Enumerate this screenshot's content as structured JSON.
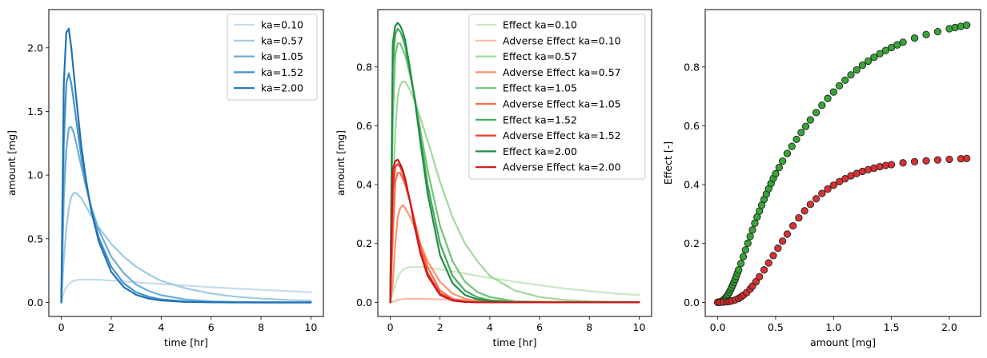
{
  "chart_data": [
    {
      "type": "line",
      "xlabel": "time [hr]",
      "ylabel": "amount [mg]",
      "xlim": [
        -0.5,
        10.5
      ],
      "ylim": [
        -0.11,
        2.3
      ],
      "xticks": [
        0,
        2,
        4,
        6,
        8,
        10
      ],
      "xtick_labels": [
        "0",
        "2",
        "4",
        "6",
        "8",
        "10"
      ],
      "yticks": [
        0.0,
        0.5,
        1.0,
        1.5,
        2.0
      ],
      "ytick_labels": [
        "0.0",
        "0.5",
        "1.0",
        "1.5",
        "2.0"
      ],
      "legend": "top-right",
      "grid": false,
      "x": [
        0,
        0.1,
        0.2,
        0.3,
        0.4,
        0.5,
        0.6,
        0.8,
        1,
        1.2,
        1.5,
        2,
        2.5,
        3,
        3.5,
        4,
        5,
        6,
        7,
        8,
        9,
        10
      ],
      "series": [
        {
          "name": "ka=0.10",
          "color": "#c6dbef",
          "values": [
            0,
            0.08,
            0.12,
            0.145,
            0.16,
            0.17,
            0.175,
            0.18,
            0.18,
            0.18,
            0.178,
            0.172,
            0.165,
            0.158,
            0.151,
            0.145,
            0.132,
            0.12,
            0.109,
            0.099,
            0.09,
            0.08
          ]
        },
        {
          "name": "ka=0.57",
          "color": "#9ecae1",
          "values": [
            0,
            0.34,
            0.58,
            0.74,
            0.83,
            0.86,
            0.86,
            0.82,
            0.75,
            0.68,
            0.59,
            0.46,
            0.36,
            0.28,
            0.22,
            0.17,
            0.11,
            0.07,
            0.045,
            0.03,
            0.02,
            0.013
          ]
        },
        {
          "name": "ka=1.05",
          "color": "#6baed6",
          "values": [
            0,
            0.82,
            1.2,
            1.37,
            1.38,
            1.33,
            1.25,
            1.07,
            0.9,
            0.75,
            0.57,
            0.36,
            0.23,
            0.14,
            0.09,
            0.057,
            0.023,
            0.009,
            0.004,
            0.002,
            0.001,
            0.0
          ]
        },
        {
          "name": "ka=1.52",
          "color": "#4292c6",
          "values": [
            0,
            1.25,
            1.72,
            1.8,
            1.72,
            1.58,
            1.43,
            1.15,
            0.92,
            0.73,
            0.51,
            0.28,
            0.15,
            0.08,
            0.045,
            0.024,
            0.007,
            0.002,
            0.001,
            0.0,
            0.0,
            0.0
          ]
        },
        {
          "name": "ka=2.00",
          "color": "#2171b5",
          "values": [
            0,
            1.72,
            2.12,
            2.15,
            2.0,
            1.8,
            1.6,
            1.23,
            0.95,
            0.72,
            0.48,
            0.24,
            0.12,
            0.06,
            0.03,
            0.015,
            0.004,
            0.001,
            0.0,
            0.0,
            0.0,
            0.0
          ]
        }
      ]
    },
    {
      "type": "line",
      "xlabel": "time [hr]",
      "ylabel": "amount [mg]",
      "xlim": [
        -0.5,
        10.5
      ],
      "ylim": [
        -0.048,
        0.995
      ],
      "xticks": [
        0,
        2,
        4,
        6,
        8,
        10
      ],
      "xtick_labels": [
        "0",
        "2",
        "4",
        "6",
        "8",
        "10"
      ],
      "yticks": [
        0.0,
        0.2,
        0.4,
        0.6,
        0.8
      ],
      "ytick_labels": [
        "0.0",
        "0.2",
        "0.4",
        "0.6",
        "0.8"
      ],
      "legend": "top-right",
      "grid": false,
      "x": [
        0,
        0.1,
        0.2,
        0.3,
        0.4,
        0.5,
        0.6,
        0.8,
        1,
        1.2,
        1.5,
        2,
        2.5,
        3,
        3.5,
        4,
        5,
        6,
        7,
        8,
        9,
        10
      ],
      "series": [
        {
          "name": "Effect ka=0.10",
          "color": "#c7e9c0",
          "values": [
            0,
            0.03,
            0.06,
            0.085,
            0.1,
            0.11,
            0.115,
            0.12,
            0.12,
            0.12,
            0.118,
            0.112,
            0.105,
            0.098,
            0.09,
            0.083,
            0.07,
            0.058,
            0.047,
            0.038,
            0.03,
            0.025
          ]
        },
        {
          "name": "Adverse Effect ka=0.10",
          "color": "#fcbba1",
          "values": [
            0,
            0.002,
            0.005,
            0.008,
            0.01,
            0.011,
            0.012,
            0.012,
            0.012,
            0.012,
            0.011,
            0.01,
            0.009,
            0.008,
            0.007,
            0.006,
            0.004,
            0.003,
            0.002,
            0.001,
            0.001,
            0.0
          ]
        },
        {
          "name": "Effect ka=0.57",
          "color": "#a1d99b",
          "values": [
            0,
            0.33,
            0.58,
            0.7,
            0.74,
            0.75,
            0.75,
            0.72,
            0.68,
            0.63,
            0.55,
            0.41,
            0.29,
            0.2,
            0.14,
            0.09,
            0.04,
            0.018,
            0.008,
            0.004,
            0.002,
            0.001
          ]
        },
        {
          "name": "Adverse Effect ka=0.57",
          "color": "#fc9272",
          "values": [
            0,
            0.06,
            0.2,
            0.29,
            0.32,
            0.33,
            0.32,
            0.29,
            0.25,
            0.2,
            0.14,
            0.07,
            0.03,
            0.012,
            0.005,
            0.002,
            0.0,
            0.0,
            0.0,
            0.0,
            0.0,
            0.0
          ]
        },
        {
          "name": "Effect ka=1.05",
          "color": "#74c476",
          "values": [
            0,
            0.62,
            0.84,
            0.88,
            0.88,
            0.86,
            0.84,
            0.77,
            0.69,
            0.59,
            0.45,
            0.26,
            0.14,
            0.07,
            0.035,
            0.018,
            0.004,
            0.001,
            0.0,
            0.0,
            0.0,
            0.0
          ]
        },
        {
          "name": "Adverse Effect ka=1.05",
          "color": "#fb6a4a",
          "values": [
            0,
            0.22,
            0.41,
            0.44,
            0.44,
            0.42,
            0.4,
            0.34,
            0.27,
            0.2,
            0.12,
            0.04,
            0.012,
            0.004,
            0.001,
            0.0,
            0.0,
            0.0,
            0.0,
            0.0,
            0.0,
            0.0
          ]
        },
        {
          "name": "Effect ka=1.52",
          "color": "#41ab5d",
          "values": [
            0,
            0.8,
            0.91,
            0.93,
            0.92,
            0.9,
            0.87,
            0.78,
            0.68,
            0.57,
            0.4,
            0.2,
            0.09,
            0.04,
            0.017,
            0.007,
            0.001,
            0.0,
            0.0,
            0.0,
            0.0,
            0.0
          ]
        },
        {
          "name": "Adverse Effect ka=1.52",
          "color": "#ef3b2c",
          "values": [
            0,
            0.38,
            0.46,
            0.47,
            0.46,
            0.44,
            0.41,
            0.34,
            0.26,
            0.18,
            0.1,
            0.03,
            0.008,
            0.002,
            0.0,
            0.0,
            0.0,
            0.0,
            0.0,
            0.0,
            0.0,
            0.0
          ]
        },
        {
          "name": "Effect ka=2.00",
          "color": "#238b45",
          "values": [
            0,
            0.88,
            0.94,
            0.95,
            0.94,
            0.92,
            0.89,
            0.79,
            0.68,
            0.55,
            0.37,
            0.16,
            0.065,
            0.025,
            0.01,
            0.004,
            0.0,
            0.0,
            0.0,
            0.0,
            0.0,
            0.0
          ]
        },
        {
          "name": "Adverse Effect ka=2.00",
          "color": "#cb181d",
          "values": [
            0,
            0.45,
            0.48,
            0.485,
            0.47,
            0.45,
            0.42,
            0.34,
            0.25,
            0.17,
            0.09,
            0.025,
            0.006,
            0.001,
            0.0,
            0.0,
            0.0,
            0.0,
            0.0,
            0.0,
            0.0,
            0.0
          ]
        }
      ]
    },
    {
      "type": "scatter",
      "xlabel": "amount [mg]",
      "ylabel": "Effect [-]",
      "xlim": [
        -0.108,
        2.27
      ],
      "ylim": [
        -0.048,
        0.995
      ],
      "xticks": [
        0.0,
        0.5,
        1.0,
        1.5,
        2.0
      ],
      "xtick_labels": [
        "0.0",
        "0.5",
        "1.0",
        "1.5",
        "2.0"
      ],
      "yticks": [
        0.0,
        0.2,
        0.4,
        0.6,
        0.8
      ],
      "ytick_labels": [
        "0.0",
        "0.2",
        "0.4",
        "0.6",
        "0.8"
      ],
      "grid": false,
      "series": [
        {
          "color": "#2ca02c",
          "points": [
            [
              0.0,
              0.0
            ],
            [
              0.01,
              0.0
            ],
            [
              0.02,
              0.002
            ],
            [
              0.03,
              0.003
            ],
            [
              0.04,
              0.005
            ],
            [
              0.05,
              0.008
            ],
            [
              0.06,
              0.012
            ],
            [
              0.07,
              0.016
            ],
            [
              0.08,
              0.021
            ],
            [
              0.09,
              0.027
            ],
            [
              0.1,
              0.034
            ],
            [
              0.11,
              0.042
            ],
            [
              0.12,
              0.05
            ],
            [
              0.13,
              0.059
            ],
            [
              0.14,
              0.068
            ],
            [
              0.15,
              0.078
            ],
            [
              0.16,
              0.088
            ],
            [
              0.17,
              0.099
            ],
            [
              0.18,
              0.11
            ],
            [
              0.2,
              0.132
            ],
            [
              0.22,
              0.155
            ],
            [
              0.24,
              0.178
            ],
            [
              0.26,
              0.201
            ],
            [
              0.28,
              0.224
            ],
            [
              0.3,
              0.246
            ],
            [
              0.32,
              0.269
            ],
            [
              0.34,
              0.29
            ],
            [
              0.36,
              0.31
            ],
            [
              0.38,
              0.33
            ],
            [
              0.4,
              0.35
            ],
            [
              0.42,
              0.368
            ],
            [
              0.44,
              0.386
            ],
            [
              0.46,
              0.404
            ],
            [
              0.48,
              0.421
            ],
            [
              0.5,
              0.437
            ],
            [
              0.53,
              0.458
            ],
            [
              0.56,
              0.48
            ],
            [
              0.6,
              0.506
            ],
            [
              0.64,
              0.53
            ],
            [
              0.68,
              0.554
            ],
            [
              0.72,
              0.577
            ],
            [
              0.76,
              0.598
            ],
            [
              0.8,
              0.62
            ],
            [
              0.85,
              0.645
            ],
            [
              0.9,
              0.67
            ],
            [
              0.95,
              0.693
            ],
            [
              1.0,
              0.715
            ],
            [
              1.05,
              0.736
            ],
            [
              1.1,
              0.755
            ],
            [
              1.15,
              0.773
            ],
            [
              1.2,
              0.79
            ],
            [
              1.25,
              0.806
            ],
            [
              1.3,
              0.82
            ],
            [
              1.35,
              0.833
            ],
            [
              1.4,
              0.845
            ],
            [
              1.45,
              0.856
            ],
            [
              1.5,
              0.866
            ],
            [
              1.55,
              0.875
            ],
            [
              1.6,
              0.884
            ],
            [
              1.7,
              0.898
            ],
            [
              1.8,
              0.91
            ],
            [
              1.9,
              0.92
            ],
            [
              2.0,
              0.93
            ],
            [
              2.05,
              0.934
            ],
            [
              2.1,
              0.938
            ],
            [
              2.15,
              0.942
            ]
          ]
        },
        {
          "color": "#d62728",
          "points": [
            [
              0.0,
              0.0
            ],
            [
              0.02,
              0.0
            ],
            [
              0.05,
              0.001
            ],
            [
              0.08,
              0.002
            ],
            [
              0.1,
              0.003
            ],
            [
              0.12,
              0.005
            ],
            [
              0.15,
              0.008
            ],
            [
              0.18,
              0.013
            ],
            [
              0.2,
              0.018
            ],
            [
              0.22,
              0.024
            ],
            [
              0.25,
              0.033
            ],
            [
              0.28,
              0.045
            ],
            [
              0.3,
              0.055
            ],
            [
              0.33,
              0.07
            ],
            [
              0.36,
              0.087
            ],
            [
              0.4,
              0.11
            ],
            [
              0.44,
              0.134
            ],
            [
              0.48,
              0.159
            ],
            [
              0.52,
              0.184
            ],
            [
              0.56,
              0.208
            ],
            [
              0.6,
              0.232
            ],
            [
              0.65,
              0.26
            ],
            [
              0.7,
              0.287
            ],
            [
              0.75,
              0.311
            ],
            [
              0.8,
              0.333
            ],
            [
              0.85,
              0.352
            ],
            [
              0.9,
              0.37
            ],
            [
              0.95,
              0.385
            ],
            [
              1.0,
              0.398
            ],
            [
              1.05,
              0.41
            ],
            [
              1.1,
              0.42
            ],
            [
              1.15,
              0.43
            ],
            [
              1.2,
              0.438
            ],
            [
              1.25,
              0.445
            ],
            [
              1.3,
              0.451
            ],
            [
              1.35,
              0.456
            ],
            [
              1.4,
              0.461
            ],
            [
              1.45,
              0.465
            ],
            [
              1.5,
              0.468
            ],
            [
              1.6,
              0.474
            ],
            [
              1.7,
              0.478
            ],
            [
              1.8,
              0.481
            ],
            [
              1.9,
              0.484
            ],
            [
              2.0,
              0.486
            ],
            [
              2.1,
              0.488
            ],
            [
              2.15,
              0.489
            ]
          ]
        }
      ]
    }
  ]
}
